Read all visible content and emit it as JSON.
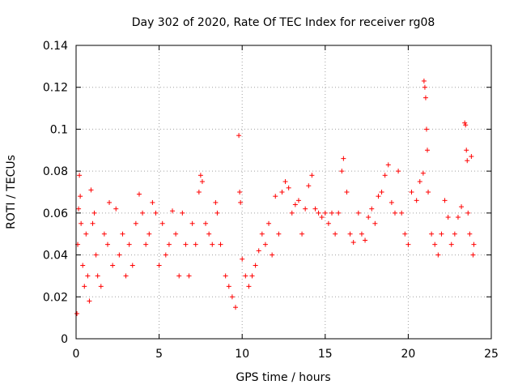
{
  "chart_data": {
    "type": "scatter",
    "title": "Day 302 of 2020, Rate Of TEC Index for receiver rg08",
    "xlabel": "GPS time / hours",
    "ylabel": "ROTI / TECUs",
    "xlim": [
      0,
      25
    ],
    "ylim": [
      0,
      0.14
    ],
    "xticks": [
      0,
      5,
      10,
      15,
      20,
      25
    ],
    "xtick_labels": [
      "0",
      "5",
      "10",
      "15",
      "20",
      "25"
    ],
    "yticks": [
      0,
      0.02,
      0.04,
      0.06,
      0.08,
      0.1,
      0.12,
      0.14
    ],
    "ytick_labels": [
      "0",
      "0.02",
      "0.04",
      "0.06",
      "0.08",
      "0.1",
      "0.12",
      "0.14"
    ],
    "grid": true,
    "marker": "plus",
    "series": [
      {
        "name": "ROTI",
        "color": "#ff0000",
        "points": [
          [
            0.05,
            0.012
          ],
          [
            0.1,
            0.045
          ],
          [
            0.15,
            0.062
          ],
          [
            0.2,
            0.078
          ],
          [
            0.25,
            0.068
          ],
          [
            0.3,
            0.055
          ],
          [
            0.4,
            0.035
          ],
          [
            0.5,
            0.025
          ],
          [
            0.6,
            0.05
          ],
          [
            0.7,
            0.03
          ],
          [
            0.8,
            0.018
          ],
          [
            0.9,
            0.071
          ],
          [
            1.0,
            0.055
          ],
          [
            1.1,
            0.06
          ],
          [
            1.2,
            0.04
          ],
          [
            1.3,
            0.03
          ],
          [
            1.5,
            0.025
          ],
          [
            1.7,
            0.05
          ],
          [
            1.9,
            0.045
          ],
          [
            2.0,
            0.065
          ],
          [
            2.2,
            0.035
          ],
          [
            2.4,
            0.062
          ],
          [
            2.6,
            0.04
          ],
          [
            2.8,
            0.05
          ],
          [
            3.0,
            0.03
          ],
          [
            3.2,
            0.045
          ],
          [
            3.4,
            0.035
          ],
          [
            3.6,
            0.055
          ],
          [
            3.8,
            0.069
          ],
          [
            4.0,
            0.06
          ],
          [
            4.2,
            0.045
          ],
          [
            4.4,
            0.05
          ],
          [
            4.6,
            0.065
          ],
          [
            4.8,
            0.06
          ],
          [
            5.0,
            0.035
          ],
          [
            5.2,
            0.055
          ],
          [
            5.4,
            0.04
          ],
          [
            5.6,
            0.045
          ],
          [
            5.8,
            0.061
          ],
          [
            6.0,
            0.05
          ],
          [
            6.2,
            0.03
          ],
          [
            6.4,
            0.06
          ],
          [
            6.6,
            0.045
          ],
          [
            6.8,
            0.03
          ],
          [
            7.0,
            0.055
          ],
          [
            7.2,
            0.045
          ],
          [
            7.4,
            0.07
          ],
          [
            7.5,
            0.078
          ],
          [
            7.6,
            0.075
          ],
          [
            7.8,
            0.055
          ],
          [
            8.0,
            0.05
          ],
          [
            8.2,
            0.045
          ],
          [
            8.4,
            0.065
          ],
          [
            8.5,
            0.06
          ],
          [
            8.7,
            0.045
          ],
          [
            9.0,
            0.03
          ],
          [
            9.2,
            0.025
          ],
          [
            9.4,
            0.02
          ],
          [
            9.6,
            0.015
          ],
          [
            9.8,
            0.097
          ],
          [
            9.85,
            0.07
          ],
          [
            9.9,
            0.065
          ],
          [
            10.0,
            0.038
          ],
          [
            10.2,
            0.03
          ],
          [
            10.4,
            0.025
          ],
          [
            10.6,
            0.03
          ],
          [
            10.8,
            0.035
          ],
          [
            11.0,
            0.042
          ],
          [
            11.2,
            0.05
          ],
          [
            11.4,
            0.045
          ],
          [
            11.6,
            0.055
          ],
          [
            11.8,
            0.04
          ],
          [
            12.0,
            0.068
          ],
          [
            12.2,
            0.05
          ],
          [
            12.4,
            0.07
          ],
          [
            12.6,
            0.075
          ],
          [
            12.8,
            0.072
          ],
          [
            13.0,
            0.06
          ],
          [
            13.2,
            0.064
          ],
          [
            13.4,
            0.066
          ],
          [
            13.6,
            0.05
          ],
          [
            13.8,
            0.062
          ],
          [
            14.0,
            0.073
          ],
          [
            14.2,
            0.078
          ],
          [
            14.4,
            0.062
          ],
          [
            14.6,
            0.06
          ],
          [
            14.8,
            0.058
          ],
          [
            15.0,
            0.06
          ],
          [
            15.2,
            0.055
          ],
          [
            15.4,
            0.06
          ],
          [
            15.6,
            0.05
          ],
          [
            15.8,
            0.06
          ],
          [
            16.0,
            0.08
          ],
          [
            16.1,
            0.086
          ],
          [
            16.3,
            0.07
          ],
          [
            16.5,
            0.05
          ],
          [
            16.7,
            0.046
          ],
          [
            17.0,
            0.06
          ],
          [
            17.2,
            0.05
          ],
          [
            17.4,
            0.047
          ],
          [
            17.6,
            0.058
          ],
          [
            17.8,
            0.062
          ],
          [
            18.0,
            0.055
          ],
          [
            18.2,
            0.068
          ],
          [
            18.4,
            0.07
          ],
          [
            18.6,
            0.078
          ],
          [
            18.8,
            0.083
          ],
          [
            19.0,
            0.065
          ],
          [
            19.2,
            0.06
          ],
          [
            19.4,
            0.08
          ],
          [
            19.6,
            0.06
          ],
          [
            19.8,
            0.05
          ],
          [
            20.0,
            0.045
          ],
          [
            20.2,
            0.07
          ],
          [
            20.5,
            0.066
          ],
          [
            20.7,
            0.075
          ],
          [
            20.9,
            0.079
          ],
          [
            20.95,
            0.123
          ],
          [
            21.0,
            0.12
          ],
          [
            21.05,
            0.115
          ],
          [
            21.1,
            0.1
          ],
          [
            21.15,
            0.09
          ],
          [
            21.2,
            0.07
          ],
          [
            21.4,
            0.05
          ],
          [
            21.6,
            0.045
          ],
          [
            21.8,
            0.04
          ],
          [
            22.0,
            0.05
          ],
          [
            22.2,
            0.066
          ],
          [
            22.4,
            0.058
          ],
          [
            22.6,
            0.045
          ],
          [
            22.8,
            0.05
          ],
          [
            23.0,
            0.058
          ],
          [
            23.2,
            0.063
          ],
          [
            23.4,
            0.103
          ],
          [
            23.45,
            0.102
          ],
          [
            23.5,
            0.09
          ],
          [
            23.55,
            0.085
          ],
          [
            23.6,
            0.06
          ],
          [
            23.7,
            0.05
          ],
          [
            23.8,
            0.087
          ],
          [
            23.9,
            0.04
          ],
          [
            23.95,
            0.045
          ]
        ]
      }
    ]
  }
}
